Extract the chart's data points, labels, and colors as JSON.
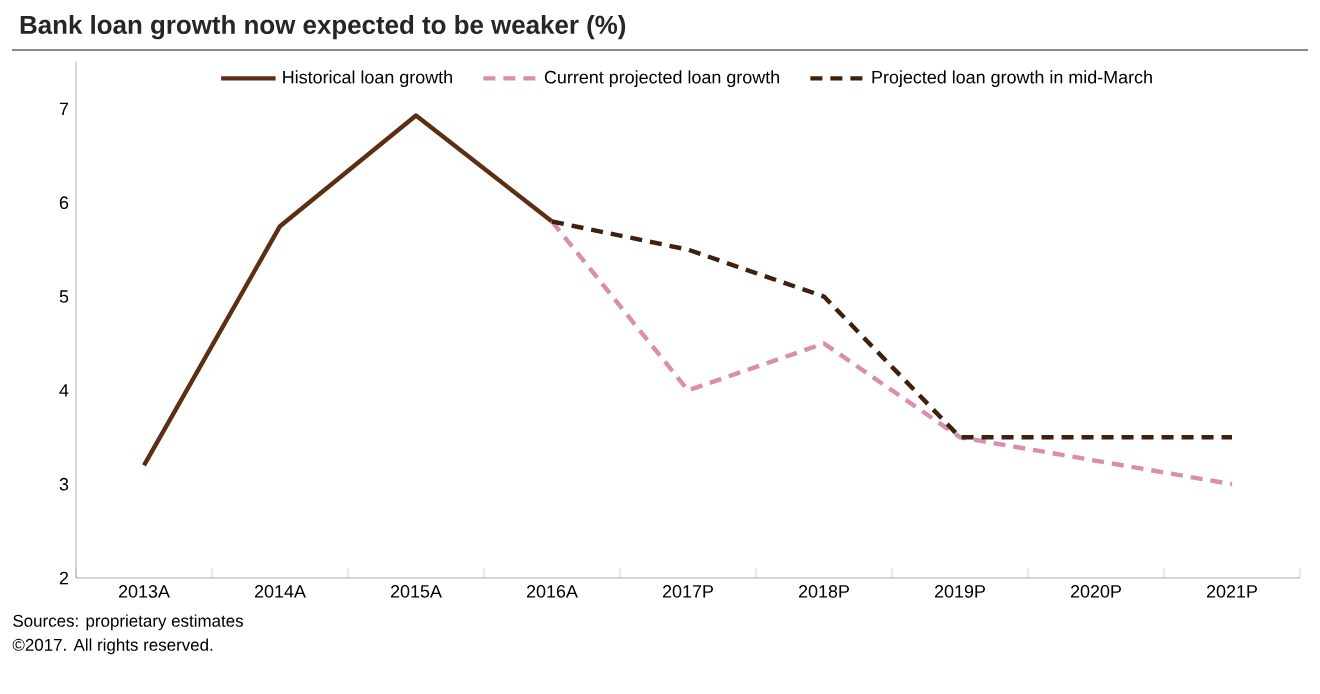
{
  "chart_data": {
    "type": "line",
    "title": "Bank loan growth now expected to be weaker (%)",
    "categories": [
      "2013A",
      "2014A",
      "2015A",
      "2016A",
      "2017P",
      "2018P",
      "2019P",
      "2020P",
      "2021P"
    ],
    "series": [
      {
        "name": "Historical loan growth",
        "color": "#5c2e14",
        "line_style": "solid",
        "values": [
          3.2,
          5.75,
          6.93,
          5.8,
          null,
          null,
          null,
          null,
          null
        ]
      },
      {
        "name": "Current projected loan growth",
        "color": "#d98fab",
        "line_style": "dashed",
        "values": [
          null,
          null,
          null,
          5.8,
          4.0,
          4.5,
          3.5,
          3.25,
          3.0
        ]
      },
      {
        "name": "Projected loan growth in mid-March",
        "color": "#3f200c",
        "line_style": "dashed",
        "values": [
          null,
          null,
          null,
          5.8,
          5.5,
          5.0,
          3.5,
          3.5,
          3.5
        ]
      }
    ],
    "ylim": [
      2,
      7.5
    ],
    "yticks": [
      2,
      3,
      4,
      5,
      6,
      7
    ],
    "grid": false,
    "legend": "top",
    "marker": "none",
    "annotations": [
      "Sources: proprietary estimates",
      "©2017. All rights reserved."
    ]
  }
}
